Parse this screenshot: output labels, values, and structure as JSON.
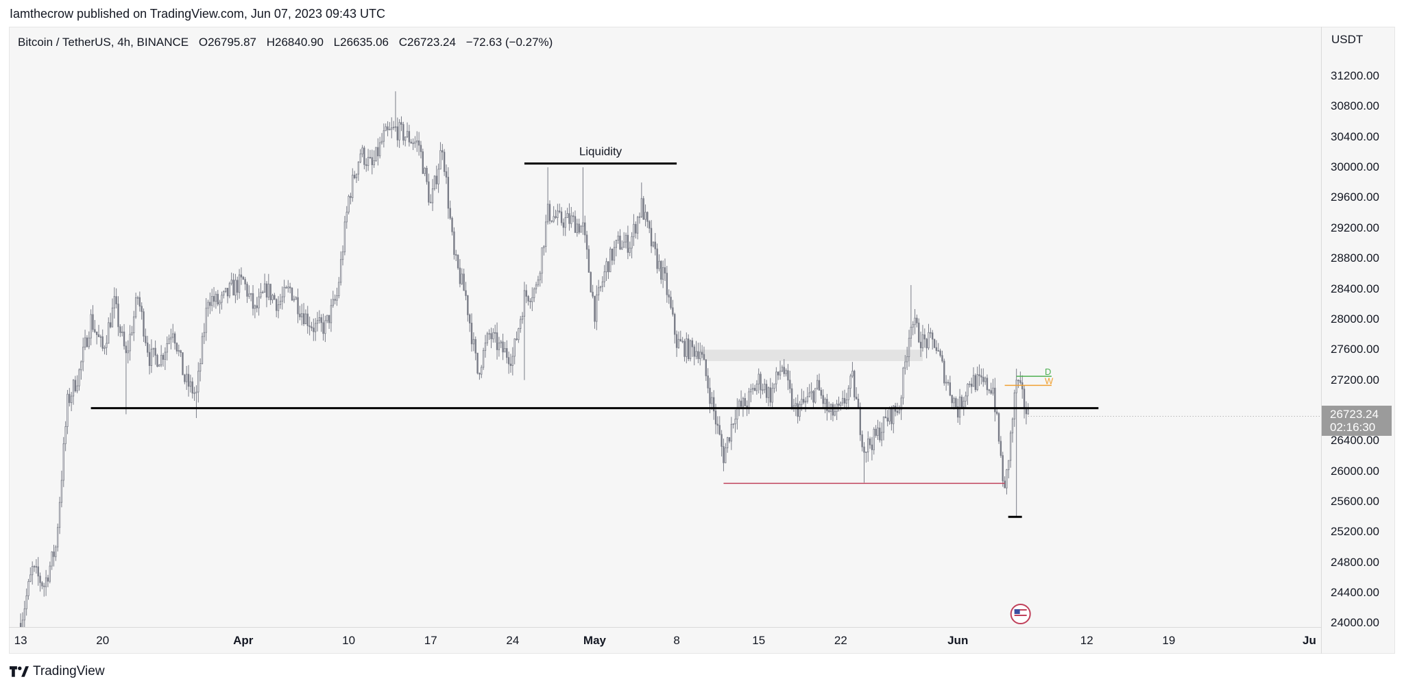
{
  "header": {
    "publisher_line": "Iamthecrow published on TradingView.com, Jun 07, 2023 09:43 UTC"
  },
  "legend": {
    "symbol": "Bitcoin / TetherUS, 4h, BINANCE",
    "open": "O26795.87",
    "high": "H26840.90",
    "low": "L26635.06",
    "close": "C26723.24",
    "change": "−72.63 (−0.27%)"
  },
  "price_axis": {
    "currency": "USDT",
    "last_price": "26723.24",
    "countdown": "02:16:30"
  },
  "footer": {
    "brand": "TradingView"
  },
  "colors": {
    "background": "#f6f6f6",
    "candle": "#787b86",
    "support_line": "#000000",
    "red_line": "#c0405a",
    "d_level": "#4caf50",
    "w_level": "#f0a030",
    "zone": "#e3e3e3"
  },
  "chart_data": {
    "type": "candlestick",
    "symbol": "Bitcoin / TetherUS",
    "interval": "4h",
    "exchange": "BINANCE",
    "ylim": [
      23950,
      31850
    ],
    "y_ticks": [
      "31200.00",
      "30800.00",
      "30400.00",
      "30000.00",
      "29600.00",
      "29200.00",
      "28800.00",
      "28400.00",
      "28000.00",
      "27600.00",
      "27200.00",
      "26800.00",
      "26400.00",
      "26000.00",
      "25600.00",
      "25200.00",
      "24800.00",
      "24400.00",
      "24000.00"
    ],
    "x_ticks": [
      {
        "label": "13",
        "date": "2023-03-13",
        "bold": false
      },
      {
        "label": "20",
        "date": "2023-03-20",
        "bold": false
      },
      {
        "label": "Apr",
        "date": "2023-04-01",
        "bold": true
      },
      {
        "label": "10",
        "date": "2023-04-10",
        "bold": false
      },
      {
        "label": "17",
        "date": "2023-04-17",
        "bold": false
      },
      {
        "label": "24",
        "date": "2023-04-24",
        "bold": false
      },
      {
        "label": "May",
        "date": "2023-05-01",
        "bold": true
      },
      {
        "label": "8",
        "date": "2023-05-08",
        "bold": false
      },
      {
        "label": "15",
        "date": "2023-05-15",
        "bold": false
      },
      {
        "label": "22",
        "date": "2023-05-22",
        "bold": false
      },
      {
        "label": "Jun",
        "date": "2023-06-01",
        "bold": true
      },
      {
        "label": "12",
        "date": "2023-06-12",
        "bold": false
      },
      {
        "label": "19",
        "date": "2023-06-19",
        "bold": false
      },
      {
        "label": "Ju",
        "date": "2023-07-01",
        "bold": true
      }
    ],
    "x_range": [
      "2023-03-12",
      "2023-07-02"
    ],
    "path": [
      [
        "2023-03-13",
        24000
      ],
      [
        "2023-03-14",
        24700
      ],
      [
        "2023-03-15",
        24500
      ],
      [
        "2023-03-16",
        25000
      ],
      [
        "2023-03-17",
        26900
      ],
      [
        "2023-03-18",
        27300
      ],
      [
        "2023-03-19",
        28000
      ],
      [
        "2023-03-20",
        27600
      ],
      [
        "2023-03-21",
        28200
      ],
      [
        "2023-03-22",
        27500
      ],
      [
        "2023-03-23",
        28300
      ],
      [
        "2023-03-24",
        27500
      ],
      [
        "2023-03-25",
        27500
      ],
      [
        "2023-03-26",
        27900
      ],
      [
        "2023-03-27",
        27200
      ],
      [
        "2023-03-28",
        27000
      ],
      [
        "2023-03-29",
        28300
      ],
      [
        "2023-03-30",
        28200
      ],
      [
        "2023-03-31",
        28400
      ],
      [
        "2023-04-01",
        28500
      ],
      [
        "2023-04-02",
        28100
      ],
      [
        "2023-04-03",
        28400
      ],
      [
        "2023-04-04",
        28200
      ],
      [
        "2023-04-05",
        28400
      ],
      [
        "2023-04-06",
        28100
      ],
      [
        "2023-04-07",
        27900
      ],
      [
        "2023-04-08",
        27900
      ],
      [
        "2023-04-09",
        28300
      ],
      [
        "2023-04-10",
        29600
      ],
      [
        "2023-04-11",
        30200
      ],
      [
        "2023-04-12",
        30000
      ],
      [
        "2023-04-13",
        30400
      ],
      [
        "2023-04-14",
        30500
      ],
      [
        "2023-04-15",
        30400
      ],
      [
        "2023-04-16",
        30300
      ],
      [
        "2023-04-17",
        29500
      ],
      [
        "2023-04-18",
        30300
      ],
      [
        "2023-04-19",
        28800
      ],
      [
        "2023-04-20",
        28300
      ],
      [
        "2023-04-21",
        27300
      ],
      [
        "2023-04-22",
        27800
      ],
      [
        "2023-04-23",
        27600
      ],
      [
        "2023-04-24",
        27500
      ],
      [
        "2023-04-25",
        28300
      ],
      [
        "2023-04-26",
        28400
      ],
      [
        "2023-04-27",
        29400
      ],
      [
        "2023-04-28",
        29300
      ],
      [
        "2023-04-29",
        29300
      ],
      [
        "2023-04-30",
        29200
      ],
      [
        "2023-05-01",
        28100
      ],
      [
        "2023-05-02",
        28700
      ],
      [
        "2023-05-03",
        29000
      ],
      [
        "2023-05-04",
        29000
      ],
      [
        "2023-05-05",
        29500
      ],
      [
        "2023-05-06",
        28900
      ],
      [
        "2023-05-07",
        28500
      ],
      [
        "2023-05-08",
        27700
      ],
      [
        "2023-05-09",
        27600
      ],
      [
        "2023-05-10",
        27600
      ],
      [
        "2023-05-11",
        26900
      ],
      [
        "2023-05-12",
        26200
      ],
      [
        "2023-05-13",
        26800
      ],
      [
        "2023-05-14",
        26900
      ],
      [
        "2023-05-15",
        27200
      ],
      [
        "2023-05-16",
        27000
      ],
      [
        "2023-05-17",
        27400
      ],
      [
        "2023-05-18",
        26800
      ],
      [
        "2023-05-19",
        26900
      ],
      [
        "2023-05-20",
        27100
      ],
      [
        "2023-05-21",
        26750
      ],
      [
        "2023-05-22",
        26800
      ],
      [
        "2023-05-23",
        27200
      ],
      [
        "2023-05-24",
        26300
      ],
      [
        "2023-05-25",
        26450
      ],
      [
        "2023-05-26",
        26700
      ],
      [
        "2023-05-27",
        26850
      ],
      [
        "2023-05-28",
        28000
      ],
      [
        "2023-05-29",
        27700
      ],
      [
        "2023-05-30",
        27700
      ],
      [
        "2023-05-31",
        27200
      ],
      [
        "2023-06-01",
        26800
      ],
      [
        "2023-06-02",
        27200
      ],
      [
        "2023-06-03",
        27150
      ],
      [
        "2023-06-04",
        27100
      ],
      [
        "2023-06-05",
        25700
      ],
      [
        "2023-06-06",
        27200
      ],
      [
        "2023-06-07",
        26723
      ]
    ],
    "extremes": [
      [
        "2023-03-13",
        24000
      ],
      [
        "2023-03-22",
        26750
      ],
      [
        "2023-03-28",
        26700
      ],
      [
        "2023-04-14",
        31000
      ],
      [
        "2023-04-25",
        27200
      ],
      [
        "2023-04-27",
        30000
      ],
      [
        "2023-04-30",
        30000
      ],
      [
        "2023-05-05",
        29800
      ],
      [
        "2023-05-12",
        26000
      ],
      [
        "2023-05-24",
        25850
      ],
      [
        "2023-05-28",
        28450
      ],
      [
        "2023-06-06",
        25400
      ],
      [
        "2023-06-06",
        27350
      ]
    ],
    "annotations": [
      {
        "type": "hline",
        "label": "Liquidity",
        "y": 30050,
        "x_start": "2023-04-25",
        "x_end": "2023-05-08"
      },
      {
        "type": "hline",
        "label": "",
        "y": 26830,
        "x_start": "2023-03-19",
        "x_end": "2023-06-13"
      },
      {
        "type": "hline",
        "label": "",
        "y": 25840,
        "x_start": "2023-05-12",
        "x_end": "2023-06-05"
      },
      {
        "type": "zone",
        "label": "",
        "y_low": 27450,
        "y_high": 27600,
        "x_start": "2023-05-10",
        "x_end": "2023-05-29"
      },
      {
        "type": "level",
        "label": "D",
        "y": 27250,
        "x_start": "2023-06-06",
        "x_end": "2023-06-09"
      },
      {
        "type": "level",
        "label": "W",
        "y": 27130,
        "x_start": "2023-06-05",
        "x_end": "2023-06-09"
      }
    ]
  }
}
